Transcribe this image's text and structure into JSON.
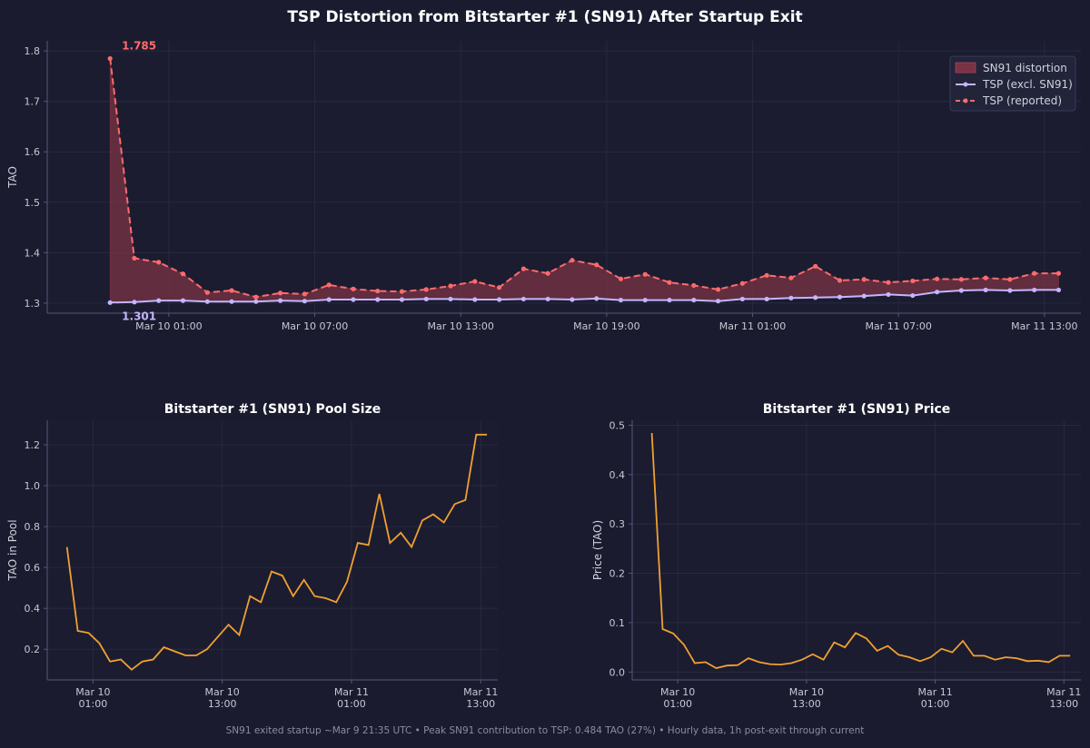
{
  "figure": {
    "title": "TSP Distortion from Bitstarter #1 (SN91) After Startup Exit",
    "footer": "SN91 exited startup ~Mar 9 21:35 UTC  •  Peak SN91 contribution to TSP: 0.484 TAO (27%)  •  Hourly data, 1h post-exit through current"
  },
  "colors": {
    "background": "#1a1b2e",
    "reported": "#ff6b6b",
    "excl": "#c4b5fd",
    "fill": "#7a3344",
    "orange": "#f0a030"
  },
  "chart_data": [
    {
      "type": "line",
      "title": "",
      "xlabel": "",
      "ylabel": "TAO",
      "ylim": [
        1.28,
        1.82
      ],
      "yticks": [
        1.3,
        1.4,
        1.5,
        1.6,
        1.7,
        1.8
      ],
      "ytick_labels": [
        "1.3",
        "1.4",
        "1.5",
        "1.6",
        "1.7",
        "1.8"
      ],
      "xticks": [
        "2024-03-10T01:00",
        "2024-03-10T07:00",
        "2024-03-10T13:00",
        "2024-03-10T19:00",
        "2024-03-11T01:00",
        "2024-03-11T07:00",
        "2024-03-11T13:00"
      ],
      "xtick_labels": [
        "Mar 10 01:00",
        "Mar 10 07:00",
        "Mar 10 13:00",
        "Mar 10 19:00",
        "Mar 11 01:00",
        "Mar 11 07:00",
        "Mar 11 13:00"
      ],
      "x": [
        "2024-03-09T22:35",
        "2024-03-09T23:35",
        "2024-03-10T00:35",
        "2024-03-10T01:35",
        "2024-03-10T02:35",
        "2024-03-10T03:35",
        "2024-03-10T04:35",
        "2024-03-10T05:35",
        "2024-03-10T06:35",
        "2024-03-10T07:35",
        "2024-03-10T08:35",
        "2024-03-10T09:35",
        "2024-03-10T10:35",
        "2024-03-10T11:35",
        "2024-03-10T12:35",
        "2024-03-10T13:35",
        "2024-03-10T14:35",
        "2024-03-10T15:35",
        "2024-03-10T16:35",
        "2024-03-10T17:35",
        "2024-03-10T18:35",
        "2024-03-10T19:35",
        "2024-03-10T20:35",
        "2024-03-10T21:35",
        "2024-03-10T22:35",
        "2024-03-10T23:35",
        "2024-03-11T00:35",
        "2024-03-11T01:35",
        "2024-03-11T02:35",
        "2024-03-11T03:35",
        "2024-03-11T04:35",
        "2024-03-11T05:35",
        "2024-03-11T06:35",
        "2024-03-11T07:35",
        "2024-03-11T08:35",
        "2024-03-11T09:35",
        "2024-03-11T10:35",
        "2024-03-11T11:35",
        "2024-03-11T12:35",
        "2024-03-11T13:35"
      ],
      "series": [
        {
          "name": "TSP (reported)",
          "values": [
            1.785,
            1.389,
            1.381,
            1.358,
            1.321,
            1.325,
            1.312,
            1.32,
            1.318,
            1.336,
            1.328,
            1.324,
            1.323,
            1.327,
            1.334,
            1.343,
            1.331,
            1.368,
            1.359,
            1.385,
            1.376,
            1.348,
            1.357,
            1.341,
            1.335,
            1.327,
            1.339,
            1.355,
            1.35,
            1.373,
            1.345,
            1.347,
            1.341,
            1.344,
            1.348,
            1.347,
            1.35,
            1.347,
            1.359,
            1.359
          ]
        },
        {
          "name": "TSP (excl. SN91)",
          "values": [
            1.301,
            1.302,
            1.305,
            1.305,
            1.303,
            1.303,
            1.303,
            1.305,
            1.304,
            1.307,
            1.307,
            1.307,
            1.307,
            1.308,
            1.308,
            1.307,
            1.307,
            1.308,
            1.308,
            1.307,
            1.309,
            1.306,
            1.306,
            1.306,
            1.306,
            1.304,
            1.308,
            1.308,
            1.31,
            1.311,
            1.312,
            1.314,
            1.317,
            1.315,
            1.322,
            1.325,
            1.326,
            1.325,
            1.326,
            1.326
          ]
        }
      ],
      "fill_label": "SN91 distortion",
      "annotations": [
        {
          "text": "1.785",
          "series": "TSP (reported)"
        },
        {
          "text": "1.301",
          "series": "TSP (excl. SN91)"
        }
      ],
      "legend": "top-right",
      "grid": true
    },
    {
      "type": "line",
      "title": "Bitstarter #1 (SN91) Pool Size",
      "xlabel": "",
      "ylabel": "TAO in Pool",
      "ylim": [
        0.05,
        1.32
      ],
      "yticks": [
        0.2,
        0.4,
        0.6,
        0.8,
        1.0,
        1.2
      ],
      "ytick_labels": [
        "0.2",
        "0.4",
        "0.6",
        "0.8",
        "1.0",
        "1.2"
      ],
      "xticks": [
        "2024-03-10T01:00",
        "2024-03-10T13:00",
        "2024-03-11T01:00",
        "2024-03-11T13:00"
      ],
      "xtick_labels": [
        [
          "Mar 10",
          "01:00"
        ],
        [
          "Mar 10",
          "13:00"
        ],
        [
          "Mar 11",
          "01:00"
        ],
        [
          "Mar 11",
          "13:00"
        ]
      ],
      "x": [
        "2024-03-09T22:35",
        "2024-03-09T23:35",
        "2024-03-10T00:35",
        "2024-03-10T01:35",
        "2024-03-10T02:35",
        "2024-03-10T03:35",
        "2024-03-10T04:35",
        "2024-03-10T05:35",
        "2024-03-10T06:35",
        "2024-03-10T07:35",
        "2024-03-10T08:35",
        "2024-03-10T09:35",
        "2024-03-10T10:35",
        "2024-03-10T11:35",
        "2024-03-10T12:35",
        "2024-03-10T13:35",
        "2024-03-10T14:35",
        "2024-03-10T15:35",
        "2024-03-10T16:35",
        "2024-03-10T17:35",
        "2024-03-10T18:35",
        "2024-03-10T19:35",
        "2024-03-10T20:35",
        "2024-03-10T21:35",
        "2024-03-10T22:35",
        "2024-03-10T23:35",
        "2024-03-11T00:35",
        "2024-03-11T01:35",
        "2024-03-11T02:35",
        "2024-03-11T03:35",
        "2024-03-11T04:35",
        "2024-03-11T05:35",
        "2024-03-11T06:35",
        "2024-03-11T07:35",
        "2024-03-11T08:35",
        "2024-03-11T09:35",
        "2024-03-11T10:35",
        "2024-03-11T11:35",
        "2024-03-11T12:35",
        "2024-03-11T13:35"
      ],
      "series": [
        {
          "name": "",
          "values": [
            0.7,
            0.29,
            0.28,
            0.23,
            0.14,
            0.15,
            0.1,
            0.14,
            0.15,
            0.21,
            0.19,
            0.17,
            0.17,
            0.2,
            0.26,
            0.32,
            0.27,
            0.46,
            0.43,
            0.58,
            0.56,
            0.46,
            0.54,
            0.46,
            0.45,
            0.43,
            0.53,
            0.72,
            0.71,
            0.96,
            0.72,
            0.77,
            0.7,
            0.83,
            0.86,
            0.82,
            0.91,
            0.93,
            1.25,
            1.25
          ]
        }
      ],
      "grid": true
    },
    {
      "type": "line",
      "title": "Bitstarter #1 (SN91) Price",
      "xlabel": "",
      "ylabel": "Price (TAO)",
      "ylim": [
        -0.016,
        0.51
      ],
      "yticks": [
        0.0,
        0.1,
        0.2,
        0.3,
        0.4,
        0.5
      ],
      "ytick_labels": [
        "0.0",
        "0.1",
        "0.2",
        "0.3",
        "0.4",
        "0.5"
      ],
      "xticks": [
        "2024-03-10T01:00",
        "2024-03-10T13:00",
        "2024-03-11T01:00",
        "2024-03-11T13:00"
      ],
      "xtick_labels": [
        [
          "Mar 10",
          "01:00"
        ],
        [
          "Mar 10",
          "13:00"
        ],
        [
          "Mar 11",
          "01:00"
        ],
        [
          "Mar 11",
          "13:00"
        ]
      ],
      "x": [
        "2024-03-09T22:35",
        "2024-03-09T23:35",
        "2024-03-10T00:35",
        "2024-03-10T01:35",
        "2024-03-10T02:35",
        "2024-03-10T03:35",
        "2024-03-10T04:35",
        "2024-03-10T05:35",
        "2024-03-10T06:35",
        "2024-03-10T07:35",
        "2024-03-10T08:35",
        "2024-03-10T09:35",
        "2024-03-10T10:35",
        "2024-03-10T11:35",
        "2024-03-10T12:35",
        "2024-03-10T13:35",
        "2024-03-10T14:35",
        "2024-03-10T15:35",
        "2024-03-10T16:35",
        "2024-03-10T17:35",
        "2024-03-10T18:35",
        "2024-03-10T19:35",
        "2024-03-10T20:35",
        "2024-03-10T21:35",
        "2024-03-10T22:35",
        "2024-03-10T23:35",
        "2024-03-11T00:35",
        "2024-03-11T01:35",
        "2024-03-11T02:35",
        "2024-03-11T03:35",
        "2024-03-11T04:35",
        "2024-03-11T05:35",
        "2024-03-11T06:35",
        "2024-03-11T07:35",
        "2024-03-11T08:35",
        "2024-03-11T09:35",
        "2024-03-11T10:35",
        "2024-03-11T11:35",
        "2024-03-11T12:35",
        "2024-03-11T13:35"
      ],
      "series": [
        {
          "name": "",
          "values": [
            0.484,
            0.087,
            0.078,
            0.055,
            0.018,
            0.02,
            0.008,
            0.013,
            0.014,
            0.028,
            0.02,
            0.016,
            0.015,
            0.018,
            0.025,
            0.036,
            0.025,
            0.06,
            0.05,
            0.079,
            0.068,
            0.043,
            0.053,
            0.035,
            0.03,
            0.022,
            0.03,
            0.047,
            0.04,
            0.063,
            0.033,
            0.033,
            0.025,
            0.03,
            0.028,
            0.022,
            0.023,
            0.02,
            0.033,
            0.033
          ]
        }
      ],
      "grid": true
    }
  ]
}
